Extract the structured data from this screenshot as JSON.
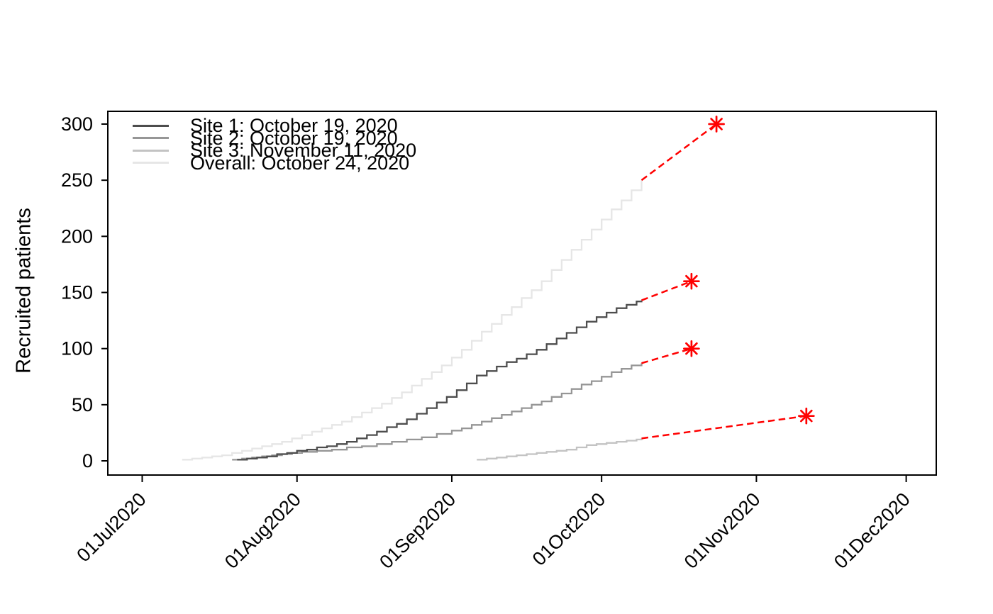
{
  "figure": {
    "background": "#FFFFFF"
  },
  "chart_data": {
    "type": "line",
    "variant": "cumulative-step-recruitment-with-prediction",
    "title": "",
    "xlabel": "",
    "ylabel": "Recruited patients",
    "ylim": [
      0,
      300
    ],
    "yticks": [
      0,
      50,
      100,
      150,
      200,
      250,
      300
    ],
    "xticks": [
      {
        "date": "2020-07-01",
        "label": "01Jul2020"
      },
      {
        "date": "2020-08-01",
        "label": "01Aug2020"
      },
      {
        "date": "2020-09-01",
        "label": "01Sep2020"
      },
      {
        "date": "2020-10-01",
        "label": "01Oct2020"
      },
      {
        "date": "2020-11-01",
        "label": "01Nov2020"
      },
      {
        "date": "2020-12-01",
        "label": "01Dec2020"
      }
    ],
    "grid": false,
    "legend_position": "top-left-inside",
    "prediction_color": "#FF0000",
    "prediction_line_style": "dashed",
    "prediction_marker": "asterisk",
    "series": [
      {
        "name": "Site 1",
        "color": "#4D4D4D",
        "legend_label": "Site 1: October 19, 2020",
        "predicted_end_value": 160,
        "points": [
          [
            "2020-07-20",
            1
          ],
          [
            "2020-07-22",
            2
          ],
          [
            "2020-07-24",
            3
          ],
          [
            "2020-07-26",
            4
          ],
          [
            "2020-07-28",
            6
          ],
          [
            "2020-07-30",
            7
          ],
          [
            "2020-08-01",
            9
          ],
          [
            "2020-08-03",
            10
          ],
          [
            "2020-08-05",
            12
          ],
          [
            "2020-08-07",
            13
          ],
          [
            "2020-08-09",
            15
          ],
          [
            "2020-08-11",
            17
          ],
          [
            "2020-08-13",
            20
          ],
          [
            "2020-08-15",
            23
          ],
          [
            "2020-08-17",
            26
          ],
          [
            "2020-08-19",
            30
          ],
          [
            "2020-08-21",
            33
          ],
          [
            "2020-08-23",
            37
          ],
          [
            "2020-08-25",
            42
          ],
          [
            "2020-08-27",
            47
          ],
          [
            "2020-08-29",
            52
          ],
          [
            "2020-08-31",
            57
          ],
          [
            "2020-09-02",
            63
          ],
          [
            "2020-09-04",
            69
          ],
          [
            "2020-09-06",
            76
          ],
          [
            "2020-09-08",
            80
          ],
          [
            "2020-09-10",
            84
          ],
          [
            "2020-09-12",
            88
          ],
          [
            "2020-09-14",
            91
          ],
          [
            "2020-09-16",
            95
          ],
          [
            "2020-09-18",
            99
          ],
          [
            "2020-09-20",
            104
          ],
          [
            "2020-09-22",
            109
          ],
          [
            "2020-09-24",
            114
          ],
          [
            "2020-09-26",
            119
          ],
          [
            "2020-09-28",
            124
          ],
          [
            "2020-09-30",
            128
          ],
          [
            "2020-10-02",
            132
          ],
          [
            "2020-10-04",
            136
          ],
          [
            "2020-10-06",
            139
          ],
          [
            "2020-10-08",
            142
          ],
          [
            "2020-10-09",
            143
          ]
        ]
      },
      {
        "name": "Site 2",
        "color": "#969696",
        "legend_label": "Site 2: October 19, 2020",
        "predicted_end_value": 100,
        "points": [
          [
            "2020-07-19",
            1
          ],
          [
            "2020-07-21",
            2
          ],
          [
            "2020-07-23",
            3
          ],
          [
            "2020-07-25",
            4
          ],
          [
            "2020-07-27",
            5
          ],
          [
            "2020-07-29",
            6
          ],
          [
            "2020-07-31",
            7
          ],
          [
            "2020-08-02",
            8
          ],
          [
            "2020-08-05",
            9
          ],
          [
            "2020-08-08",
            10
          ],
          [
            "2020-08-11",
            12
          ],
          [
            "2020-08-14",
            13
          ],
          [
            "2020-08-17",
            15
          ],
          [
            "2020-08-20",
            17
          ],
          [
            "2020-08-23",
            19
          ],
          [
            "2020-08-26",
            21
          ],
          [
            "2020-08-29",
            24
          ],
          [
            "2020-09-01",
            27
          ],
          [
            "2020-09-03",
            29
          ],
          [
            "2020-09-05",
            32
          ],
          [
            "2020-09-07",
            35
          ],
          [
            "2020-09-09",
            38
          ],
          [
            "2020-09-11",
            41
          ],
          [
            "2020-09-13",
            44
          ],
          [
            "2020-09-15",
            47
          ],
          [
            "2020-09-17",
            50
          ],
          [
            "2020-09-19",
            53
          ],
          [
            "2020-09-21",
            57
          ],
          [
            "2020-09-23",
            60
          ],
          [
            "2020-09-25",
            64
          ],
          [
            "2020-09-27",
            68
          ],
          [
            "2020-09-29",
            71
          ],
          [
            "2020-10-01",
            75
          ],
          [
            "2020-10-03",
            79
          ],
          [
            "2020-10-05",
            82
          ],
          [
            "2020-10-07",
            85
          ],
          [
            "2020-10-09",
            87
          ]
        ]
      },
      {
        "name": "Site 3",
        "color": "#C3C3C3",
        "legend_label": "Site 3: November 11, 2020",
        "predicted_end_value": 40,
        "points": [
          [
            "2020-09-06",
            1
          ],
          [
            "2020-09-08",
            2
          ],
          [
            "2020-09-10",
            3
          ],
          [
            "2020-09-12",
            4
          ],
          [
            "2020-09-14",
            5
          ],
          [
            "2020-09-16",
            6
          ],
          [
            "2020-09-18",
            7
          ],
          [
            "2020-09-20",
            8
          ],
          [
            "2020-09-22",
            9
          ],
          [
            "2020-09-24",
            10
          ],
          [
            "2020-09-26",
            12
          ],
          [
            "2020-09-28",
            14
          ],
          [
            "2020-09-30",
            15
          ],
          [
            "2020-10-02",
            16
          ],
          [
            "2020-10-04",
            17
          ],
          [
            "2020-10-06",
            18
          ],
          [
            "2020-10-08",
            19
          ],
          [
            "2020-10-09",
            20
          ]
        ]
      },
      {
        "name": "Overall",
        "color": "#E6E6E6",
        "legend_label": "Overall: October 24, 2020",
        "predicted_end_value": 300,
        "points": [
          [
            "2020-07-09",
            1
          ],
          [
            "2020-07-11",
            2
          ],
          [
            "2020-07-13",
            3
          ],
          [
            "2020-07-15",
            4
          ],
          [
            "2020-07-17",
            5
          ],
          [
            "2020-07-19",
            7
          ],
          [
            "2020-07-21",
            9
          ],
          [
            "2020-07-23",
            11
          ],
          [
            "2020-07-25",
            13
          ],
          [
            "2020-07-27",
            15
          ],
          [
            "2020-07-29",
            17
          ],
          [
            "2020-07-31",
            20
          ],
          [
            "2020-08-02",
            23
          ],
          [
            "2020-08-04",
            26
          ],
          [
            "2020-08-06",
            29
          ],
          [
            "2020-08-08",
            32
          ],
          [
            "2020-08-10",
            35
          ],
          [
            "2020-08-12",
            39
          ],
          [
            "2020-08-14",
            43
          ],
          [
            "2020-08-16",
            47
          ],
          [
            "2020-08-18",
            51
          ],
          [
            "2020-08-20",
            56
          ],
          [
            "2020-08-22",
            61
          ],
          [
            "2020-08-24",
            67
          ],
          [
            "2020-08-26",
            73
          ],
          [
            "2020-08-28",
            79
          ],
          [
            "2020-08-30",
            85
          ],
          [
            "2020-09-01",
            92
          ],
          [
            "2020-09-03",
            99
          ],
          [
            "2020-09-05",
            107
          ],
          [
            "2020-09-07",
            115
          ],
          [
            "2020-09-09",
            122
          ],
          [
            "2020-09-11",
            130
          ],
          [
            "2020-09-13",
            137
          ],
          [
            "2020-09-15",
            145
          ],
          [
            "2020-09-17",
            152
          ],
          [
            "2020-09-19",
            160
          ],
          [
            "2020-09-21",
            170
          ],
          [
            "2020-09-23",
            179
          ],
          [
            "2020-09-25",
            188
          ],
          [
            "2020-09-27",
            197
          ],
          [
            "2020-09-29",
            206
          ],
          [
            "2020-10-01",
            215
          ],
          [
            "2020-10-03",
            224
          ],
          [
            "2020-10-05",
            232
          ],
          [
            "2020-10-07",
            241
          ],
          [
            "2020-10-09",
            250
          ]
        ]
      }
    ],
    "predictions": [
      {
        "series": "Site 1",
        "from": [
          "2020-10-09",
          143
        ],
        "to": [
          "2020-10-19",
          160
        ]
      },
      {
        "series": "Site 2",
        "from": [
          "2020-10-09",
          87
        ],
        "to": [
          "2020-10-19",
          100
        ]
      },
      {
        "series": "Site 3",
        "from": [
          "2020-10-09",
          20
        ],
        "to": [
          "2020-11-11",
          40
        ]
      },
      {
        "series": "Overall",
        "from": [
          "2020-10-09",
          250
        ],
        "to": [
          "2020-10-24",
          300
        ]
      }
    ]
  }
}
